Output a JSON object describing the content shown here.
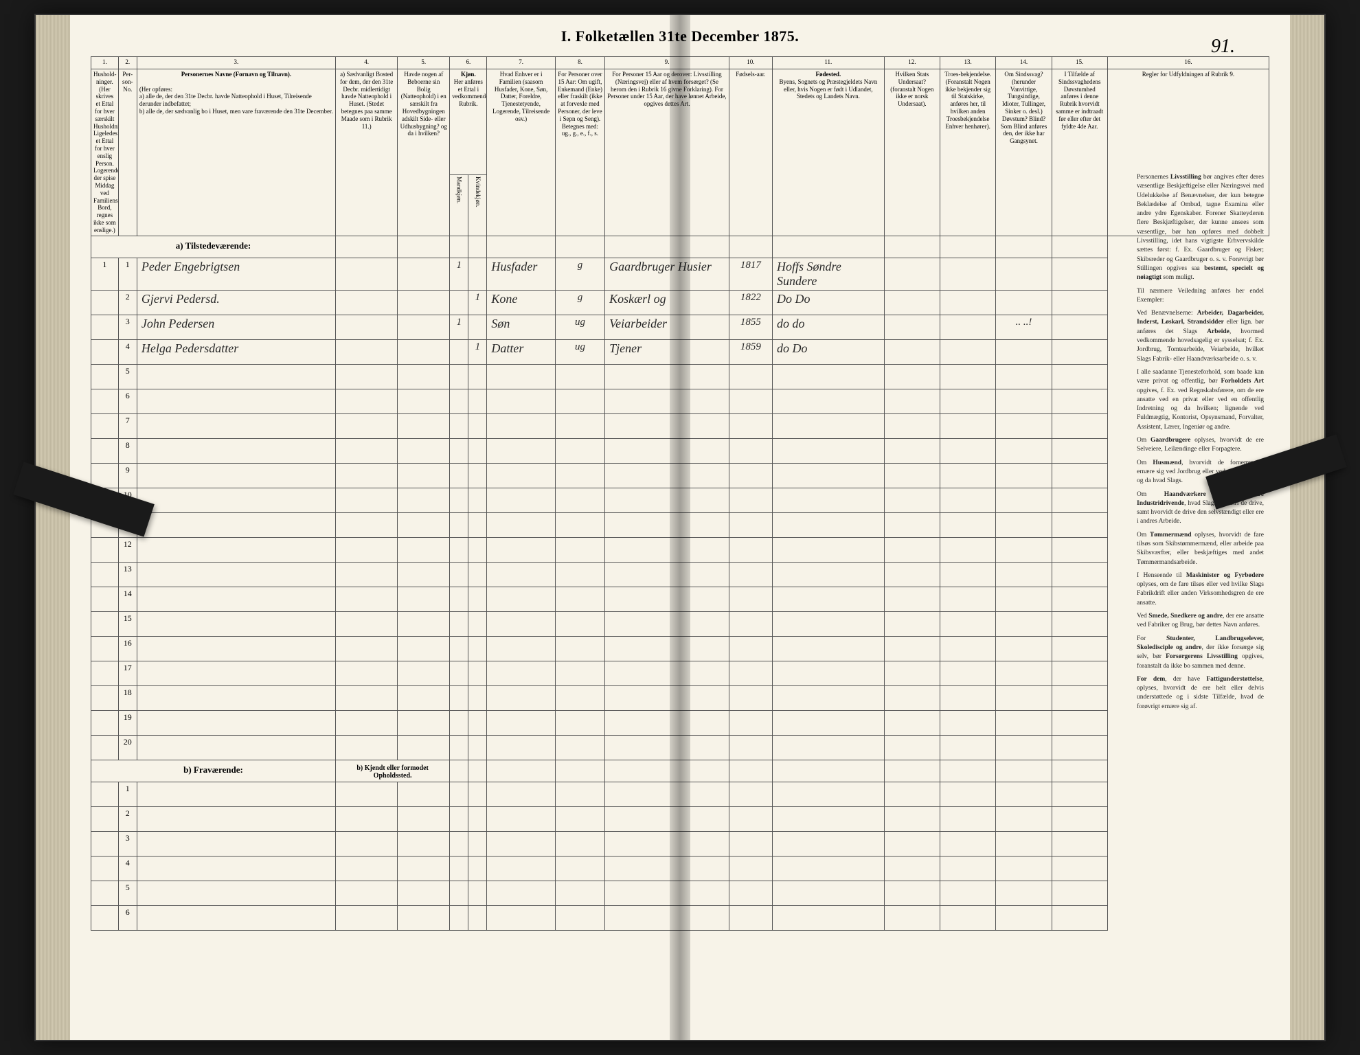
{
  "title": "I.  Folketællen 31te December 1875.",
  "page_number": "91.",
  "col_numbers": [
    "1.",
    "2.",
    "3.",
    "4.",
    "5.",
    "6.",
    "7.",
    "8.",
    "9.",
    "10.",
    "11.",
    "12.",
    "13.",
    "14.",
    "15.",
    "16."
  ],
  "headers": {
    "c1": "Hushold-ninger. (Her skrives et Ettal for hver særskilt Husholdning; Ligeledes et Ettal for hver enslig Person. Logerende, der spise Middag ved Familiens Bord, regnes ikke som enslige.)",
    "c2": "Per-son-No.",
    "c3_title": "Personernes Navne (Fornavn og Tilnavn).",
    "c3_sub": "(Her opføres:\na) alle de, der den 31te Decbr. havde Natteophold i Huset, Tilreisende derunder indbefattet;\nb) alle de, der sædvanlig bo i Huset, men vare fraværende den 31te December.",
    "c4": "a) Sædvanligt Bosted for dem, der den 31te Decbr. midlertidigt havde Natteophold i Huset. (Stedet betegnes paa samme Maade som i Rubrik 11.)",
    "c5": "Havde nogen af Beboerne sin Bolig (Natteophold) i en særskilt fra Hovedbygningen adskilt Side- eller Udhusbygning? og da i hvilken?",
    "c6_title": "Kjøn.",
    "c6_sub": "Her anføres et Ettal i vedkommende Rubrik.",
    "c6a": "Mandkjøn.",
    "c6b": "Kvindekjøn.",
    "c7": "Hvad Enhver er i Familien (saasom Husfader, Kone, Søn, Datter, Foreldre, Tjenestetyende, Logerende, Tilreisende osv.)",
    "c8": "For Personer over 15 Aar: Om ugift, Enkemand (Enke) eller fraskilt (ikke at forvexle med Personer, der leve i Sepn og Seng). Betegnes med: ug., g., e., f., s.",
    "c9": "For Personer 15 Aar og derover: Livsstilling (Næringsvej) eller af hvem forsørget? (Se herom den i Rubrik 16 givne Forklaring). For Personer under 15 Aar, der have lønnet Arbeide, opgives dettes Art.",
    "c10": "Fødsels-aar.",
    "c11_title": "Fødested.",
    "c11_sub": "Byens, Sognets og Præstegjeldets Navn eller, hvis Nogen er født i Udlandet, Stedets og Landets Navn.",
    "c12": "Hvilken Stats Undersaat? (foranstalt Nogen ikke er norsk Undersaat).",
    "c13": "Troes-bekjendelse. (Foranstalt Nogen ikke bekjender sig til Statskirke, anføres her, til hvilken anden Troesbekjendelse Enhver henhører).",
    "c14": "Om Sindssvag? (herunder Vanvittige, Tungsindige, Idioter, Tullinger, Sinker o. desl.) Døvstum? Blind? Som Blind anføres den, der ikke har Gangsynet.",
    "c15": "I Tilfælde af Sindssvaghedens Døvstumhed anføres i denne Rubrik hvorvidt samme er indtraadt før eller efter det fyldte 4de Aar.",
    "c16_title": "Regler for Udfyldningen af Rubrik 9."
  },
  "section_a": "a) Tilstedeværende:",
  "section_b": "b) Fraværende:",
  "section_b_right": "b) Kjendt eller formodet Opholdssted.",
  "rows": [
    {
      "n": "1",
      "p": "1",
      "name": "Peder Engebrigtsen",
      "c4": "",
      "c5": "",
      "m": "1",
      "k": "",
      "rel": "Husfader",
      "ms": "g",
      "occ": "Gaardbruger Husier",
      "year": "1817",
      "place": "Hoffs Søndre Sundere"
    },
    {
      "n": "",
      "p": "2",
      "name": "Gjervi Pedersd.",
      "c4": "",
      "c5": "",
      "m": "",
      "k": "1",
      "rel": "Kone",
      "ms": "g",
      "occ": "Koskærl og",
      "year": "1822",
      "place": "Do    Do"
    },
    {
      "n": "",
      "p": "3",
      "name": "John Pedersen",
      "c4": "",
      "c5": "",
      "m": "1",
      "k": "",
      "rel": "Søn",
      "ms": "ug",
      "occ": "Veiarbeider",
      "year": "1855",
      "place": "do    do"
    },
    {
      "n": "",
      "p": "4",
      "name": "Helga Pedersdatter",
      "c4": "",
      "c5": "",
      "m": "",
      "k": "1",
      "rel": "Datter",
      "ms": "ug",
      "occ": "Tjener",
      "year": "1859",
      "place": "do    Do"
    }
  ],
  "blank_a": [
    5,
    6,
    7,
    8,
    9,
    10,
    11,
    12,
    13,
    14,
    15,
    16,
    17,
    18,
    19,
    20
  ],
  "blank_b": [
    1,
    2,
    3,
    4,
    5,
    6
  ],
  "c14_marks": {
    "row3": "..   ..!"
  },
  "instructions_title": "Personernes Livsstilling",
  "instructions": [
    "Personernes <b>Livsstilling</b> bør angives efter deres væsentlige Beskjæftigelse eller Næringsvei med Udelukkelse af Benævnelser, der kun betegne Beklædelse af Ombud, tagne Examina eller andre ydre Egenskaber. Forener Skatteyderen flere Beskjæftigelser, der kunne ansees som væsentlige, bør han opføres med dobbelt Livsstilling, idet hans vigtigste Erhvervskilde sættes først: f. Ex. Gaardbruger og Fisker; Skibsreder og Gaardbruger o. s. v. Forøvrigt bør Stillingen opgives saa <b>bestemt, specielt og nøiagtigt</b> som muligt.",
    "Til nærmere Veiledning anføres her endel Exempler:",
    "Ved Benævnelserne: <b>Arbeider, Dagarbeider, Inderst, Løskarl, Strandsidder</b> eller lign. bør anføres det Slags <b>Arbeide</b>, hvormed vedkommende hovedsagelig er sysselsat; f. Ex. Jordbrug, Tomtearbeide, Veiarbeide, hvilket Slags Fabrik- eller Haandværksarbeide o. s. v.",
    "I alle saadanne Tjenesteforhold, som baade kan være privat og offentlig, bør <b>Forholdets Art</b> opgives, f. Ex. ved Regnskabsførere, om de ere ansatte ved en privat eller ved en offentlig Indretning og da hvilken; lignende ved Fuldmægtig, Kontorist, Opsynsmand, Forvalter, Assistent, Lærer, Ingeniør og andre.",
    "Om <b>Gaardbrugere</b> oplyses, hvorvidt de ere Selveiere, Leilændinge eller Forpagtere.",
    "Om <b>Husmænd</b>, hvorvidt de fornemmelig ernære sig ved Jordbrug eller ved andet Arbeide og da hvad Slags.",
    "Om <b>Haandværkere og andre Industridrivende</b>, hvad Slags Industri de drive, samt hvorvidt de drive den selvstændigt eller ere i andres Arbeide.",
    "Om <b>Tømmermænd</b> oplyses, hvorvidt de fare tilsøs som Skibstømmermænd, eller arbeide paa Skibsværfter, eller beskjæftiges med andet Tømmermandsarbeide.",
    "I Henseende til <b>Maskinister og Fyrbødere</b> oplyses, om de fare tilsøs eller ved hvilke Slags Fabrikdrift eller anden Virksomhedsgren de ere ansatte.",
    "Ved <b>Smede, Snedkere og andre</b>, der ere ansatte ved Fabriker og Brug, bør dettes Navn anføres.",
    "For <b>Studenter, Landbrugselever, Skoledisciple og andre</b>, der ikke forsørge sig selv, bør <b>Forsørgerens Livsstilling</b> opgives, foranstalt da ikke bo sammen med denne.",
    "<b>For dem</b>, der have <b>Fattigunderstøttelse</b>, oplyses, hvorvidt de ere helt eller delvis understøttede og i sidste Tilfælde, hvad de forøvrigt ernære sig af."
  ],
  "colors": {
    "paper": "#f7f3e8",
    "border": "#555555",
    "ink": "#2a2a2a",
    "background": "#1a1a1a"
  },
  "fonts": {
    "body_pt": 10,
    "header_pt": 9,
    "title_pt": 22,
    "cursive_pt": 18
  }
}
